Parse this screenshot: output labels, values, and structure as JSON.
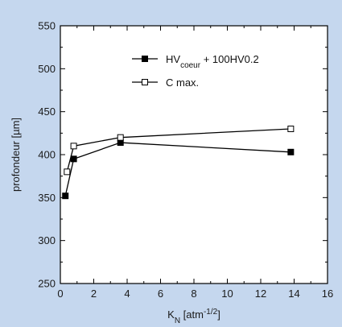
{
  "chart_data": {
    "type": "line",
    "title": "",
    "xlabel": {
      "base": "K",
      "sub": "N",
      "unit_prefix": " [atm",
      "sup": "-1/2",
      "unit_suffix": "]"
    },
    "ylabel": "profondeur [µm]",
    "xlim": [
      0,
      16
    ],
    "ylim": [
      250,
      550
    ],
    "xticks": [
      "0",
      "2",
      "4",
      "6",
      "8",
      "10",
      "12",
      "14",
      "16"
    ],
    "yticks": [
      "250",
      "300",
      "350",
      "400",
      "450",
      "500",
      "550"
    ],
    "legend_position": "top-right",
    "grid": false,
    "series": [
      {
        "name": {
          "base": "HV",
          "sub": "coeur",
          "rest": " + 100HV0.2"
        },
        "marker": "filled-square",
        "color": "#000000",
        "x": [
          0.3,
          0.8,
          3.6,
          13.8
        ],
        "y": [
          352,
          395,
          414,
          403
        ]
      },
      {
        "name": {
          "base": "C max.",
          "sub": "",
          "rest": ""
        },
        "marker": "open-square",
        "color": "#000000",
        "x": [
          0.4,
          0.8,
          3.6,
          13.8
        ],
        "y": [
          380,
          410,
          420,
          430
        ]
      }
    ]
  }
}
